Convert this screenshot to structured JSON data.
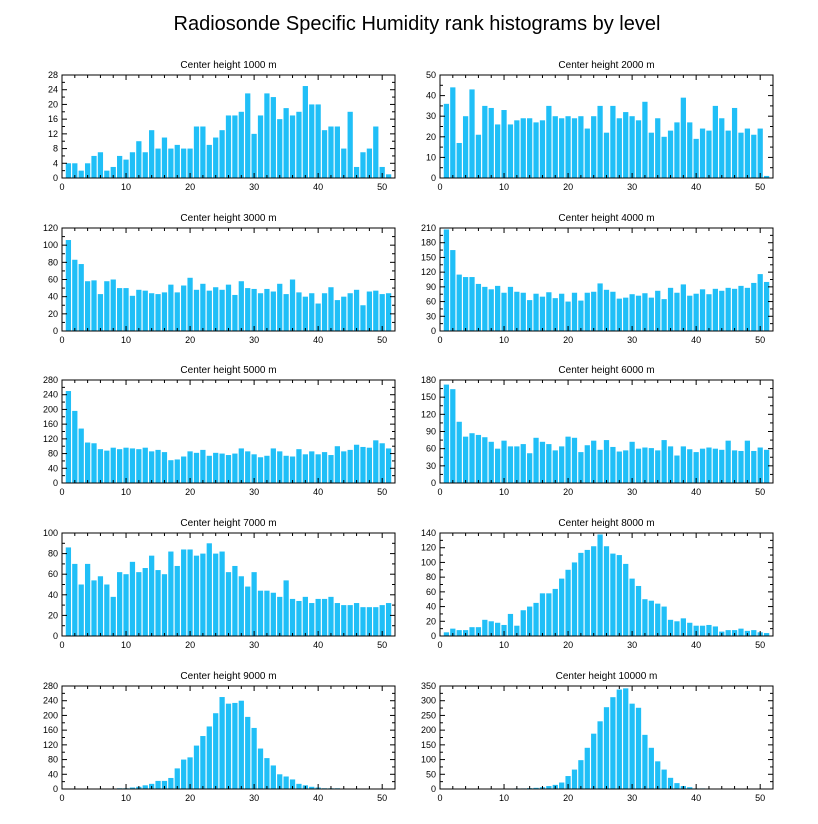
{
  "figure": {
    "title": "Radiosonde Specific Humidity rank histograms by level",
    "bar_color": "#20bff7",
    "axis_color": "#000000"
  },
  "chart_data": [
    {
      "type": "bar",
      "title": "Center height 1000 m",
      "xlabel": "",
      "ylabel": "",
      "xlim": [
        0,
        52
      ],
      "ylim": [
        0,
        28
      ],
      "xticks": [
        0,
        10,
        20,
        30,
        40,
        50
      ],
      "yticks": [
        0,
        4,
        8,
        12,
        16,
        20,
        24,
        28
      ],
      "categories": [
        1,
        2,
        3,
        4,
        5,
        6,
        7,
        8,
        9,
        10,
        11,
        12,
        13,
        14,
        15,
        16,
        17,
        18,
        19,
        20,
        21,
        22,
        23,
        24,
        25,
        26,
        27,
        28,
        29,
        30,
        31,
        32,
        33,
        34,
        35,
        36,
        37,
        38,
        39,
        40,
        41,
        42,
        43,
        44,
        45,
        46,
        47,
        48,
        49,
        50,
        51
      ],
      "values": [
        4,
        4,
        2,
        4,
        6,
        7,
        2,
        3,
        6,
        5,
        7,
        10,
        7,
        13,
        8,
        11,
        8,
        9,
        8,
        8,
        14,
        14,
        9,
        11,
        13,
        17,
        17,
        18,
        23,
        12,
        17,
        23,
        22,
        16,
        19,
        17,
        18,
        25,
        20,
        20,
        13,
        14,
        14,
        8,
        18,
        3,
        7,
        8,
        14,
        3,
        1
      ]
    },
    {
      "type": "bar",
      "title": "Center height 2000 m",
      "xlabel": "",
      "ylabel": "",
      "xlim": [
        0,
        52
      ],
      "ylim": [
        0,
        50
      ],
      "xticks": [
        0,
        10,
        20,
        30,
        40,
        50
      ],
      "yticks": [
        0,
        10,
        20,
        30,
        40,
        50
      ],
      "categories": [
        1,
        2,
        3,
        4,
        5,
        6,
        7,
        8,
        9,
        10,
        11,
        12,
        13,
        14,
        15,
        16,
        17,
        18,
        19,
        20,
        21,
        22,
        23,
        24,
        25,
        26,
        27,
        28,
        29,
        30,
        31,
        32,
        33,
        34,
        35,
        36,
        37,
        38,
        39,
        40,
        41,
        42,
        43,
        44,
        45,
        46,
        47,
        48,
        49,
        50,
        51
      ],
      "values": [
        36,
        44,
        17,
        30,
        43,
        21,
        35,
        34,
        26,
        33,
        26,
        28,
        29,
        29,
        27,
        28,
        35,
        30,
        29,
        30,
        29,
        30,
        24,
        30,
        35,
        22,
        35,
        29,
        32,
        30,
        28,
        37,
        22,
        29,
        20,
        23,
        27,
        39,
        27,
        19,
        24,
        23,
        35,
        29,
        23,
        34,
        22,
        24,
        21,
        24,
        1
      ]
    },
    {
      "type": "bar",
      "title": "Center height 3000 m",
      "xlabel": "",
      "ylabel": "",
      "xlim": [
        0,
        52
      ],
      "ylim": [
        0,
        120
      ],
      "xticks": [
        0,
        10,
        20,
        30,
        40,
        50
      ],
      "yticks": [
        0,
        20,
        40,
        60,
        80,
        100,
        120
      ],
      "categories": [
        1,
        2,
        3,
        4,
        5,
        6,
        7,
        8,
        9,
        10,
        11,
        12,
        13,
        14,
        15,
        16,
        17,
        18,
        19,
        20,
        21,
        22,
        23,
        24,
        25,
        26,
        27,
        28,
        29,
        30,
        31,
        32,
        33,
        34,
        35,
        36,
        37,
        38,
        39,
        40,
        41,
        42,
        43,
        44,
        45,
        46,
        47,
        48,
        49,
        50,
        51
      ],
      "values": [
        106,
        83,
        78,
        58,
        59,
        43,
        58,
        60,
        50,
        50,
        41,
        48,
        47,
        44,
        43,
        45,
        54,
        45,
        53,
        62,
        48,
        55,
        47,
        51,
        48,
        54,
        42,
        58,
        50,
        49,
        44,
        49,
        46,
        55,
        43,
        60,
        45,
        40,
        44,
        32,
        44,
        51,
        36,
        40,
        44,
        48,
        30,
        46,
        47,
        43,
        44
      ]
    },
    {
      "type": "bar",
      "title": "Center height 4000 m",
      "xlabel": "",
      "ylabel": "",
      "xlim": [
        0,
        52
      ],
      "ylim": [
        0,
        210
      ],
      "xticks": [
        0,
        10,
        20,
        30,
        40,
        50
      ],
      "yticks": [
        0,
        30,
        60,
        90,
        120,
        150,
        180,
        210
      ],
      "categories": [
        1,
        2,
        3,
        4,
        5,
        6,
        7,
        8,
        9,
        10,
        11,
        12,
        13,
        14,
        15,
        16,
        17,
        18,
        19,
        20,
        21,
        22,
        23,
        24,
        25,
        26,
        27,
        28,
        29,
        30,
        31,
        32,
        33,
        34,
        35,
        36,
        37,
        38,
        39,
        40,
        41,
        42,
        43,
        44,
        45,
        46,
        47,
        48,
        49,
        50,
        51
      ],
      "values": [
        207,
        165,
        115,
        110,
        110,
        96,
        90,
        85,
        92,
        78,
        90,
        80,
        78,
        63,
        76,
        70,
        79,
        67,
        76,
        60,
        78,
        62,
        78,
        80,
        97,
        84,
        80,
        66,
        68,
        75,
        72,
        77,
        68,
        82,
        65,
        88,
        78,
        95,
        72,
        76,
        85,
        75,
        86,
        82,
        88,
        86,
        92,
        88,
        98,
        116,
        100
      ]
    },
    {
      "type": "bar",
      "title": "Center height 5000 m",
      "xlabel": "",
      "ylabel": "",
      "xlim": [
        0,
        52
      ],
      "ylim": [
        0,
        280
      ],
      "xticks": [
        0,
        10,
        20,
        30,
        40,
        50
      ],
      "yticks": [
        0,
        40,
        80,
        120,
        160,
        200,
        240,
        280
      ],
      "categories": [
        1,
        2,
        3,
        4,
        5,
        6,
        7,
        8,
        9,
        10,
        11,
        12,
        13,
        14,
        15,
        16,
        17,
        18,
        19,
        20,
        21,
        22,
        23,
        24,
        25,
        26,
        27,
        28,
        29,
        30,
        31,
        32,
        33,
        34,
        35,
        36,
        37,
        38,
        39,
        40,
        41,
        42,
        43,
        44,
        45,
        46,
        47,
        48,
        49,
        50,
        51
      ],
      "values": [
        250,
        196,
        148,
        110,
        108,
        92,
        88,
        96,
        92,
        96,
        94,
        92,
        96,
        86,
        90,
        84,
        62,
        64,
        72,
        86,
        82,
        90,
        74,
        82,
        80,
        76,
        80,
        94,
        86,
        78,
        70,
        74,
        94,
        86,
        74,
        72,
        92,
        78,
        86,
        78,
        84,
        76,
        100,
        86,
        90,
        104,
        98,
        96,
        116,
        108,
        94
      ]
    },
    {
      "type": "bar",
      "title": "Center height 6000 m",
      "xlabel": "",
      "ylabel": "",
      "xlim": [
        0,
        52
      ],
      "ylim": [
        0,
        180
      ],
      "xticks": [
        0,
        10,
        20,
        30,
        40,
        50
      ],
      "yticks": [
        0,
        30,
        60,
        90,
        120,
        150,
        180
      ],
      "categories": [
        1,
        2,
        3,
        4,
        5,
        6,
        7,
        8,
        9,
        10,
        11,
        12,
        13,
        14,
        15,
        16,
        17,
        18,
        19,
        20,
        21,
        22,
        23,
        24,
        25,
        26,
        27,
        28,
        29,
        30,
        31,
        32,
        33,
        34,
        35,
        36,
        37,
        38,
        39,
        40,
        41,
        42,
        43,
        44,
        45,
        46,
        47,
        48,
        49,
        50,
        51
      ],
      "values": [
        172,
        164,
        107,
        81,
        87,
        84,
        80,
        72,
        60,
        74,
        64,
        64,
        68,
        52,
        79,
        72,
        68,
        57,
        64,
        81,
        79,
        54,
        66,
        74,
        58,
        75,
        63,
        55,
        57,
        72,
        60,
        62,
        61,
        57,
        75,
        64,
        48,
        64,
        59,
        54,
        60,
        62,
        60,
        58,
        74,
        57,
        56,
        74,
        56,
        62,
        58
      ]
    },
    {
      "type": "bar",
      "title": "Center height 7000 m",
      "xlabel": "",
      "ylabel": "",
      "xlim": [
        0,
        52
      ],
      "ylim": [
        0,
        100
      ],
      "xticks": [
        0,
        10,
        20,
        30,
        40,
        50
      ],
      "yticks": [
        0,
        20,
        40,
        60,
        80,
        100
      ],
      "categories": [
        1,
        2,
        3,
        4,
        5,
        6,
        7,
        8,
        9,
        10,
        11,
        12,
        13,
        14,
        15,
        16,
        17,
        18,
        19,
        20,
        21,
        22,
        23,
        24,
        25,
        26,
        27,
        28,
        29,
        30,
        31,
        32,
        33,
        34,
        35,
        36,
        37,
        38,
        39,
        40,
        41,
        42,
        43,
        44,
        45,
        46,
        47,
        48,
        49,
        50,
        51
      ],
      "values": [
        86,
        70,
        50,
        70,
        54,
        58,
        50,
        38,
        62,
        60,
        72,
        62,
        66,
        78,
        64,
        60,
        82,
        68,
        84,
        84,
        78,
        80,
        90,
        80,
        82,
        62,
        68,
        58,
        48,
        62,
        44,
        44,
        42,
        38,
        54,
        36,
        34,
        38,
        32,
        36,
        36,
        38,
        32,
        30,
        30,
        32,
        28,
        28,
        28,
        30,
        32
      ]
    },
    {
      "type": "bar",
      "title": "Center height 8000 m",
      "xlabel": "",
      "ylabel": "",
      "xlim": [
        0,
        52
      ],
      "ylim": [
        0,
        140
      ],
      "xticks": [
        0,
        10,
        20,
        30,
        40,
        50
      ],
      "yticks": [
        0,
        20,
        40,
        60,
        80,
        100,
        120,
        140
      ],
      "categories": [
        1,
        2,
        3,
        4,
        5,
        6,
        7,
        8,
        9,
        10,
        11,
        12,
        13,
        14,
        15,
        16,
        17,
        18,
        19,
        20,
        21,
        22,
        23,
        24,
        25,
        26,
        27,
        28,
        29,
        30,
        31,
        32,
        33,
        34,
        35,
        36,
        37,
        38,
        39,
        40,
        41,
        42,
        43,
        44,
        45,
        46,
        47,
        48,
        49,
        50,
        51
      ],
      "values": [
        5,
        10,
        8,
        8,
        12,
        12,
        22,
        20,
        18,
        15,
        30,
        14,
        35,
        40,
        45,
        58,
        58,
        64,
        78,
        90,
        100,
        113,
        117,
        122,
        138,
        122,
        112,
        110,
        98,
        78,
        68,
        50,
        48,
        44,
        40,
        22,
        20,
        24,
        18,
        14,
        14,
        15,
        13,
        6,
        8,
        8,
        10,
        7,
        8,
        5,
        4
      ]
    },
    {
      "type": "bar",
      "title": "Center height 9000 m",
      "xlabel": "",
      "ylabel": "",
      "xlim": [
        0,
        52
      ],
      "ylim": [
        0,
        280
      ],
      "xticks": [
        0,
        10,
        20,
        30,
        40,
        50
      ],
      "yticks": [
        0,
        40,
        80,
        120,
        160,
        200,
        240,
        280
      ],
      "categories": [
        1,
        2,
        3,
        4,
        5,
        6,
        7,
        8,
        9,
        10,
        11,
        12,
        13,
        14,
        15,
        16,
        17,
        18,
        19,
        20,
        21,
        22,
        23,
        24,
        25,
        26,
        27,
        28,
        29,
        30,
        31,
        32,
        33,
        34,
        35,
        36,
        37,
        38,
        39,
        40,
        41,
        42,
        43,
        44,
        45,
        46,
        47,
        48,
        49,
        50,
        51
      ],
      "values": [
        1,
        0,
        1,
        1,
        1,
        1,
        1,
        1,
        2,
        2,
        4,
        6,
        10,
        14,
        22,
        22,
        30,
        56,
        80,
        86,
        118,
        144,
        170,
        206,
        250,
        232,
        234,
        240,
        196,
        166,
        110,
        84,
        64,
        40,
        34,
        26,
        14,
        10,
        6,
        4,
        2,
        2,
        2,
        1,
        1,
        0,
        0,
        1,
        0,
        0,
        0
      ]
    },
    {
      "type": "bar",
      "title": "Center height 10000 m",
      "xlabel": "",
      "ylabel": "",
      "xlim": [
        0,
        52
      ],
      "ylim": [
        0,
        350
      ],
      "xticks": [
        0,
        10,
        20,
        30,
        40,
        50
      ],
      "yticks": [
        0,
        50,
        100,
        150,
        200,
        250,
        300,
        350
      ],
      "categories": [
        1,
        2,
        3,
        4,
        5,
        6,
        7,
        8,
        9,
        10,
        11,
        12,
        13,
        14,
        15,
        16,
        17,
        18,
        19,
        20,
        21,
        22,
        23,
        24,
        25,
        26,
        27,
        28,
        29,
        30,
        31,
        32,
        33,
        34,
        35,
        36,
        37,
        38,
        39,
        40,
        41,
        42,
        43,
        44,
        45,
        46,
        47,
        48,
        49,
        50,
        51
      ],
      "values": [
        0,
        0,
        0,
        0,
        0,
        1,
        0,
        0,
        1,
        1,
        1,
        2,
        2,
        3,
        4,
        6,
        10,
        14,
        22,
        44,
        66,
        98,
        140,
        188,
        230,
        278,
        312,
        338,
        342,
        290,
        276,
        184,
        140,
        94,
        66,
        38,
        20,
        10,
        6,
        2,
        2,
        1,
        1,
        0,
        0,
        0,
        0,
        0,
        0,
        0,
        0
      ]
    }
  ]
}
